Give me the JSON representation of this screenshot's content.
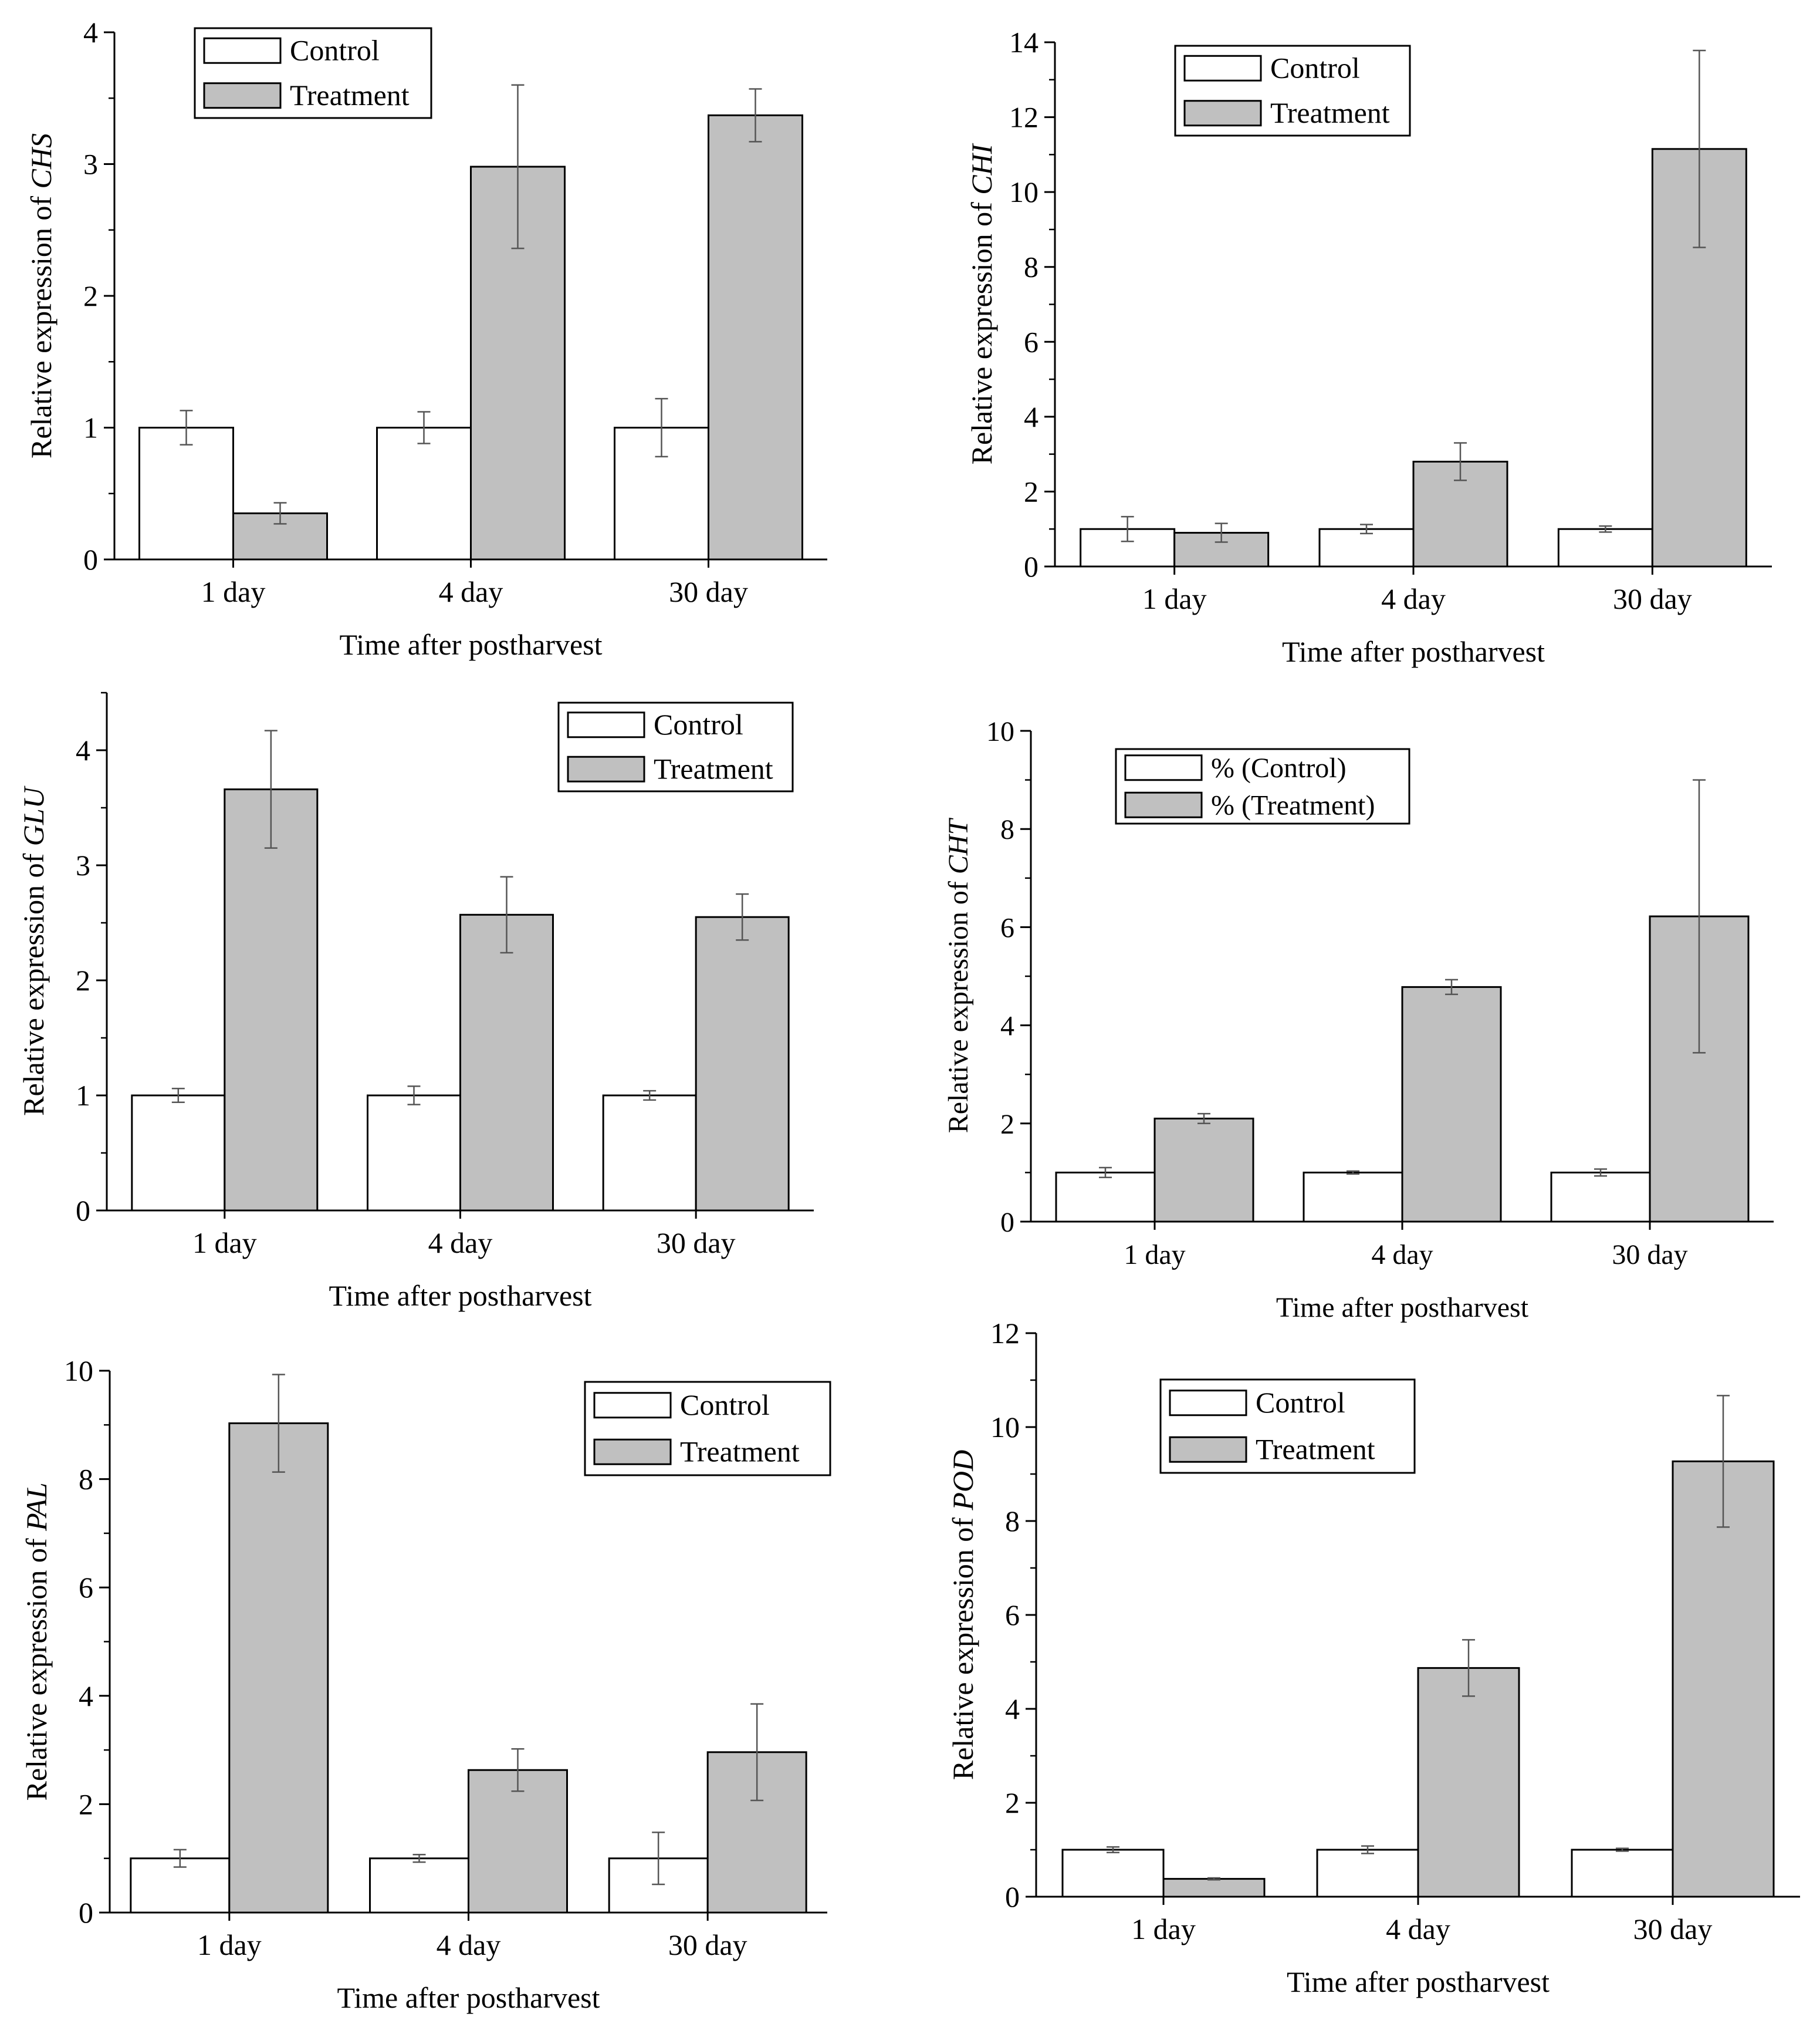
{
  "colors": {
    "control_fill": "#ffffff",
    "treatment_fill": "#c0c0c0",
    "axis": "#000000",
    "error_bar": "#555555"
  },
  "chart_data": [
    {
      "id": "chs",
      "type": "bar",
      "categories": [
        "1 day",
        "4 day",
        "30 day"
      ],
      "series": [
        {
          "name": "Control",
          "values": [
            1.0,
            1.0,
            1.0
          ],
          "errors": [
            0.13,
            0.12,
            0.22
          ]
        },
        {
          "name": "Treatment",
          "values": [
            0.35,
            2.98,
            3.37
          ],
          "errors": [
            0.08,
            0.62,
            0.2
          ]
        }
      ],
      "xlabel": "Time after postharvest",
      "ylabel_prefix": "Relative expression of ",
      "gene": "CHS",
      "ylim": [
        0,
        4
      ],
      "yticks": [
        0,
        1,
        2,
        3,
        4
      ],
      "minor_tick": 0.5,
      "legend": "top-left",
      "legend_labels": [
        "Control",
        "Treatment"
      ]
    },
    {
      "id": "chi",
      "type": "bar",
      "categories": [
        "1 day",
        "4 day",
        "30 day"
      ],
      "series": [
        {
          "name": "Control",
          "values": [
            1.0,
            1.0,
            1.0
          ],
          "errors": [
            0.33,
            0.12,
            0.08
          ]
        },
        {
          "name": "Treatment",
          "values": [
            0.9,
            2.8,
            11.15
          ],
          "errors": [
            0.25,
            0.5,
            2.63
          ]
        }
      ],
      "xlabel": "Time after postharvest",
      "ylabel_prefix": "Relative expression of ",
      "gene": "CHI",
      "ylim": [
        0,
        14
      ],
      "yticks": [
        0,
        2,
        4,
        6,
        8,
        10,
        12,
        14
      ],
      "minor_tick": 1,
      "legend": "top-left",
      "legend_labels": [
        "Control",
        "Treatment"
      ]
    },
    {
      "id": "glu",
      "type": "bar",
      "categories": [
        "1 day",
        "4 day",
        "30 day"
      ],
      "series": [
        {
          "name": "Control",
          "values": [
            1.0,
            1.0,
            1.0
          ],
          "errors": [
            0.06,
            0.08,
            0.04
          ]
        },
        {
          "name": "Treatment",
          "values": [
            3.66,
            2.57,
            2.55
          ],
          "errors": [
            0.51,
            0.33,
            0.2
          ]
        }
      ],
      "xlabel": "Time after postharvest",
      "ylabel_prefix": "Relative expression of ",
      "gene": "GLU",
      "ylim": [
        0,
        4.5
      ],
      "yticks": [
        0,
        1,
        2,
        3,
        4
      ],
      "minor_tick": 0.5,
      "legend": "top-right",
      "legend_labels": [
        "Control",
        "Treatment"
      ]
    },
    {
      "id": "cht",
      "type": "bar",
      "categories": [
        "1 day",
        "4 day",
        "30 day"
      ],
      "series": [
        {
          "name": "% (Control)",
          "values": [
            1.0,
            1.0,
            1.0
          ],
          "errors": [
            0.1,
            0.03,
            0.07
          ]
        },
        {
          "name": "% (Treatment)",
          "values": [
            2.1,
            4.78,
            6.22
          ],
          "errors": [
            0.1,
            0.15,
            2.78
          ]
        }
      ],
      "xlabel": "Time after postharvest",
      "ylabel_prefix": "Relative expression of ",
      "gene": "CHT",
      "ylim": [
        0,
        10
      ],
      "yticks": [
        0,
        2,
        4,
        6,
        8,
        10
      ],
      "minor_tick": 1,
      "legend": "top-left",
      "legend_labels": [
        "% (Control)",
        "% (Treatment)"
      ]
    },
    {
      "id": "pal",
      "type": "bar",
      "categories": [
        "1 day",
        "4 day",
        "30 day"
      ],
      "series": [
        {
          "name": "Control",
          "values": [
            1.0,
            1.0,
            1.0
          ],
          "errors": [
            0.16,
            0.07,
            0.48
          ]
        },
        {
          "name": "Treatment",
          "values": [
            9.03,
            2.63,
            2.96
          ],
          "errors": [
            0.9,
            0.39,
            0.89
          ]
        }
      ],
      "xlabel": "Time after postharvest",
      "ylabel_prefix": "Relative expression of ",
      "gene": "PAL",
      "ylim": [
        0,
        10
      ],
      "yticks": [
        0,
        2,
        4,
        6,
        8,
        10
      ],
      "minor_tick": 1,
      "legend": "top-right",
      "legend_labels": [
        "Control",
        "Treatment"
      ]
    },
    {
      "id": "pod",
      "type": "bar",
      "categories": [
        "1 day",
        "4 day",
        "30 day"
      ],
      "series": [
        {
          "name": "Control",
          "values": [
            1.0,
            1.0,
            1.0
          ],
          "errors": [
            0.06,
            0.08,
            0.03
          ]
        },
        {
          "name": "Treatment",
          "values": [
            0.38,
            4.87,
            9.27
          ],
          "errors": [
            0.02,
            0.6,
            1.4
          ]
        }
      ],
      "xlabel": "Time after postharvest",
      "ylabel_prefix": "Relative expression of ",
      "gene": "POD",
      "ylim": [
        0,
        12
      ],
      "yticks": [
        0,
        2,
        4,
        6,
        8,
        10,
        12
      ],
      "minor_tick": 1,
      "legend": "top-left",
      "legend_labels": [
        "Control",
        "Treatment"
      ]
    }
  ]
}
